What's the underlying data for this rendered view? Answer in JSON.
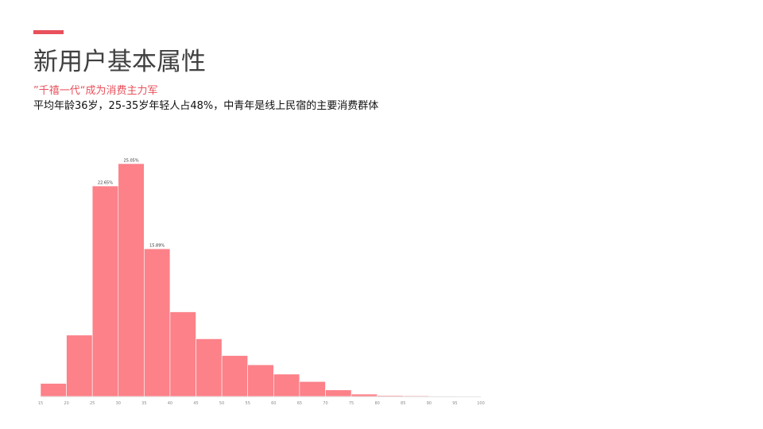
{
  "header": {
    "title": "新用户基本属性",
    "subtitle": "”千禧一代“成为消费主力军",
    "description": "平均年龄36岁，25-35岁年轻人占48%，中青年是线上民宿的主要消费群体"
  },
  "colors": {
    "accent": "#e8505b",
    "bar": "#fc8189"
  },
  "chart_data": {
    "type": "bar",
    "title": "",
    "xlabel": "",
    "ylabel": "",
    "bin_edges": [
      15,
      20,
      25,
      30,
      35,
      40,
      45,
      50,
      55,
      60,
      65,
      70,
      75,
      80,
      85,
      90,
      95,
      100
    ],
    "tick_labels": [
      "15",
      "20",
      "25",
      "30",
      "35",
      "40",
      "45",
      "50",
      "55",
      "60",
      "65",
      "70",
      "75",
      "80",
      "85",
      "90",
      "95",
      "100"
    ],
    "values": [
      1.4,
      6.6,
      22.65,
      25.05,
      15.89,
      9.1,
      6.2,
      4.4,
      3.4,
      2.4,
      1.6,
      0.7,
      0.25,
      0.1,
      0.08,
      0.05,
      0.03
    ],
    "data_labels": [
      "",
      "",
      "22.65%",
      "25.05%",
      "15.89%",
      "",
      "",
      "",
      "",
      "",
      "",
      "",
      "",
      "",
      "",
      "",
      ""
    ],
    "ylim": [
      0,
      25.05
    ],
    "grid": false,
    "legend": "none"
  }
}
